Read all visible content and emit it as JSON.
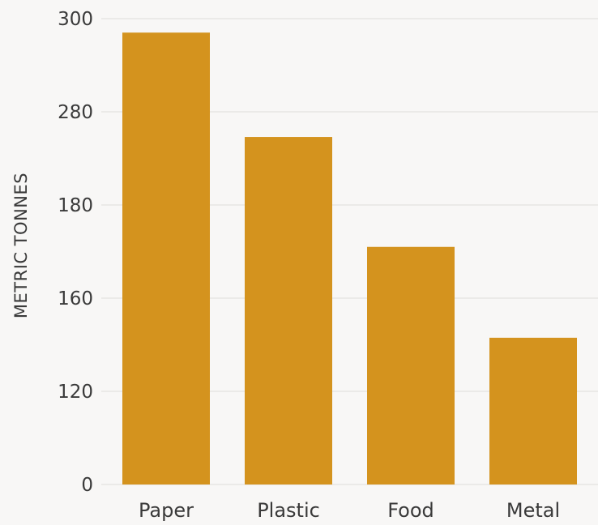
{
  "chart_data": {
    "type": "bar",
    "title": "",
    "xlabel": "",
    "ylabel": "METRIC TONNES",
    "categories": [
      "Paper",
      "Plastic",
      "Food",
      "Metal"
    ],
    "values": [
      297,
      253,
      171,
      143
    ],
    "y_ticks": [
      0,
      120,
      160,
      180,
      280,
      300
    ],
    "y_tick_labels": [
      "0",
      "120",
      "160",
      "180",
      "280",
      "300"
    ],
    "grid": true,
    "legend": "none",
    "bar_color": "#d4931e",
    "grid_color": "#dedcda"
  }
}
